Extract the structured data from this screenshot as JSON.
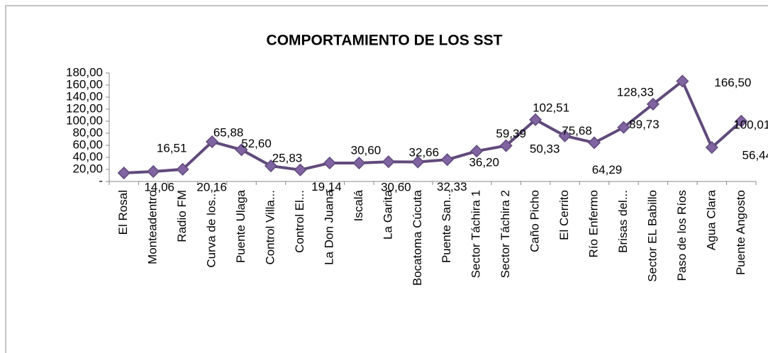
{
  "chart_data": {
    "type": "line",
    "title": "COMPORTAMIENTO DE LOS SST",
    "categories": [
      "El Rosal",
      "Monteadentro",
      "Radio  FM",
      "Curva de los...",
      "Puente Ulaga",
      "Control Villa...",
      "Control El...",
      "La Don Juana",
      "Iscalá",
      "La Garita",
      "Bocatoma Cúcuta",
      "Puente San...",
      "Sector Táchira 1",
      "Sector Táchira 2",
      "Caño Picho",
      "El Cerrito",
      "Río Enfermo",
      "Brisas del...",
      "Sector EL Babillo",
      "Paso de los Ríos",
      "Agua Clara",
      "Puente Angosto"
    ],
    "values": [
      14.06,
      16.51,
      20.16,
      65.88,
      52.6,
      25.83,
      19.14,
      30.6,
      30.6,
      32.66,
      32.33,
      36.2,
      50.33,
      59.39,
      102.51,
      75.68,
      64.29,
      89.73,
      128.33,
      166.5,
      56.44,
      100.01
    ],
    "value_labels": [
      "14,06",
      "16,51",
      "20,16",
      "65,88",
      "52,60",
      "25,83",
      "19,14",
      "30,60",
      "30,60",
      "32,66",
      "32,33",
      "36,20",
      "50,33",
      "59,39",
      "102,51",
      "75,68",
      "64,29",
      "89,73",
      "128,33",
      "166,50",
      "56,44",
      "100,01"
    ],
    "color": "#604a7b",
    "ylim": [
      0,
      180
    ],
    "yticks": [
      {
        "value": 0,
        "label": "-"
      },
      {
        "value": 20,
        "label": "20,00"
      },
      {
        "value": 40,
        "label": "40,00"
      },
      {
        "value": 60,
        "label": "60,00"
      },
      {
        "value": 80,
        "label": "80,00"
      },
      {
        "value": 100,
        "label": "100,00"
      },
      {
        "value": 120,
        "label": "120,00"
      },
      {
        "value": 140,
        "label": "140,00"
      },
      {
        "value": 160,
        "label": "160,00"
      },
      {
        "value": 180,
        "label": "180,00"
      }
    ],
    "grid": false
  }
}
